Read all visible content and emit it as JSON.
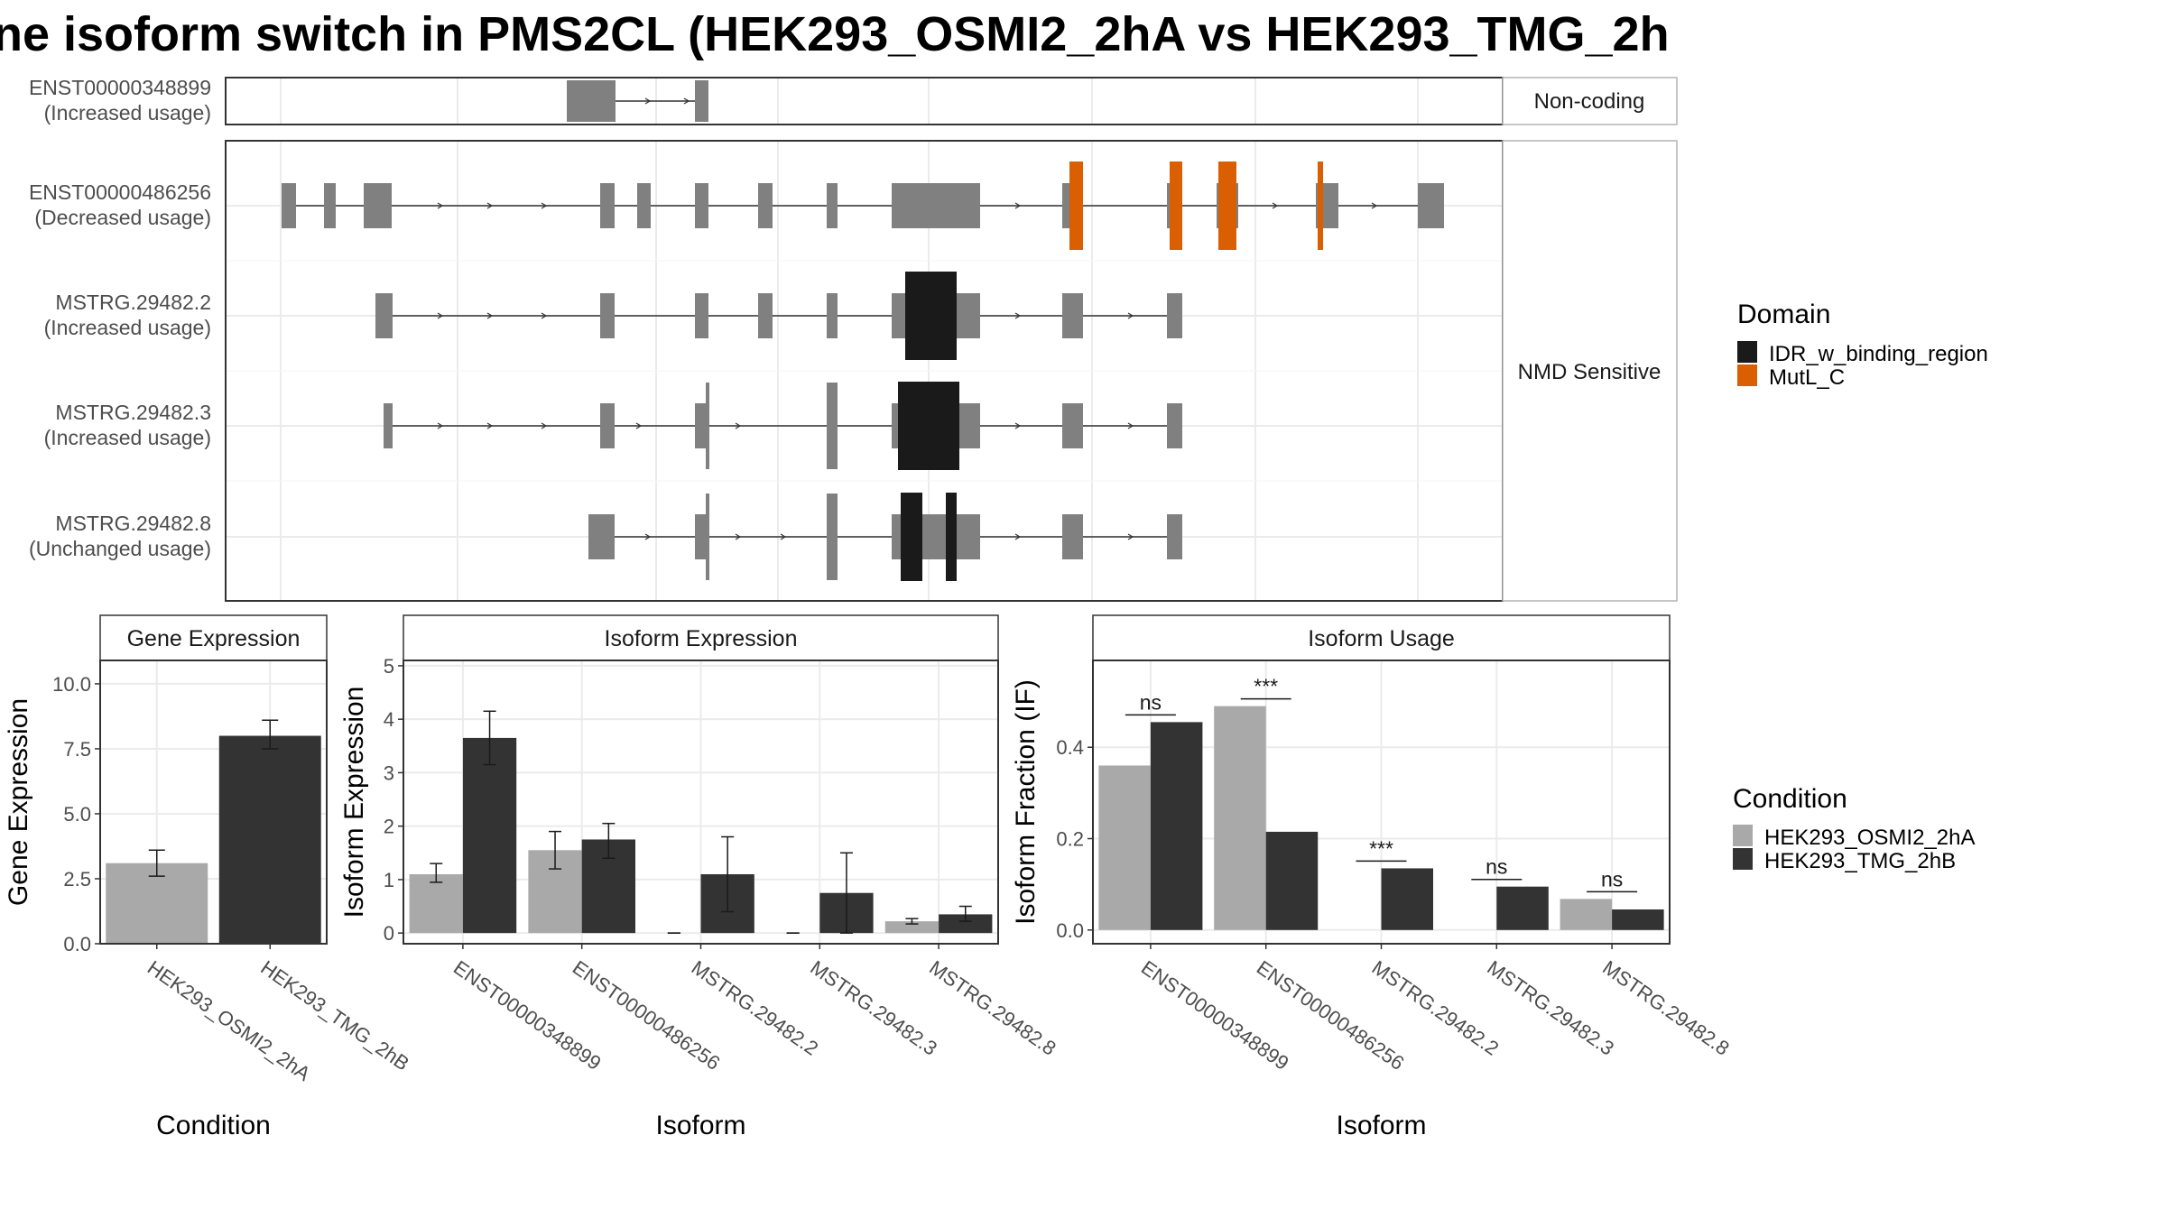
{
  "title": "ne isoform switch in PMS2CL (HEK293_OSMI2_2hA vs HEK293_TMG_2h",
  "colors": {
    "exon_gray": "#808080",
    "idr_black": "#1a1a1a",
    "mutl_orange": "#d95f02",
    "cond_a": "#a9a9a9",
    "cond_b": "#333333"
  },
  "chart_data": [
    {
      "type": "isoform-structure",
      "facets": [
        {
          "label": "Non-coding",
          "isoforms": [
            "ENST00000348899"
          ]
        },
        {
          "label": "NMD Sensitive",
          "isoforms": [
            "ENST00000486256",
            "MSTRG.29482.2",
            "MSTRG.29482.3",
            "MSTRG.29482.8"
          ]
        }
      ],
      "isoforms": [
        {
          "id": "ENST00000348899",
          "usage": "(Increased usage)"
        },
        {
          "id": "ENST00000486256",
          "usage": "(Decreased usage)"
        },
        {
          "id": "MSTRG.29482.2",
          "usage": "(Increased usage)"
        },
        {
          "id": "MSTRG.29482.3",
          "usage": "(Increased usage)"
        },
        {
          "id": "MSTRG.29482.8",
          "usage": "(Unchanged usage)"
        }
      ],
      "legend": {
        "title": "Domain",
        "entries": [
          {
            "label": "IDR_w_binding_region",
            "color": "#1a1a1a"
          },
          {
            "label": "MutL_C",
            "color": "#d95f02"
          }
        ]
      }
    },
    {
      "type": "bar",
      "title": "Gene Expression",
      "xlabel": "Condition",
      "ylabel": "Gene Expression",
      "categories": [
        "HEK293_OSMI2_2hA",
        "HEK293_TMG_2hB"
      ],
      "values": [
        3.1,
        8.0
      ],
      "errors": [
        [
          2.6,
          3.6
        ],
        [
          7.5,
          8.6
        ]
      ],
      "ylim": [
        0,
        10.9
      ],
      "yticks": [
        "0.0",
        "2.5",
        "5.0",
        "7.5",
        "10.0"
      ]
    },
    {
      "type": "bar",
      "title": "Isoform Expression",
      "xlabel": "Isoform",
      "ylabel": "Isoform Expression",
      "categories": [
        "ENST00000348899",
        "ENST00000486256",
        "MSTRG.29482.2",
        "MSTRG.29482.3",
        "MSTRG.29482.8"
      ],
      "series": [
        {
          "name": "HEK293_OSMI2_2hA",
          "values": [
            1.1,
            1.55,
            0.0,
            0.0,
            0.22
          ],
          "errors": [
            [
              0.95,
              1.3
            ],
            [
              1.2,
              1.9
            ],
            [
              0,
              0
            ],
            [
              0,
              0
            ],
            [
              0.17,
              0.27
            ]
          ]
        },
        {
          "name": "HEK293_TMG_2hB",
          "values": [
            3.65,
            1.75,
            1.1,
            0.75,
            0.35
          ],
          "errors": [
            [
              3.15,
              4.15
            ],
            [
              1.4,
              2.05
            ],
            [
              0.4,
              1.8
            ],
            [
              0.0,
              1.5
            ],
            [
              0.22,
              0.5
            ]
          ]
        }
      ],
      "ylim": [
        -0.2,
        5.1
      ],
      "yticks": [
        "0",
        "1",
        "2",
        "3",
        "4",
        "5"
      ]
    },
    {
      "type": "bar",
      "title": "Isoform Usage",
      "xlabel": "Isoform",
      "ylabel": "Isoform Fraction (IF)",
      "categories": [
        "ENST00000348899",
        "ENST00000486256",
        "MSTRG.29482.2",
        "MSTRG.29482.3",
        "MSTRG.29482.8"
      ],
      "series": [
        {
          "name": "HEK293_OSMI2_2hA",
          "values": [
            0.36,
            0.49,
            0.0,
            0.0,
            0.068
          ]
        },
        {
          "name": "HEK293_TMG_2hB",
          "values": [
            0.455,
            0.215,
            0.135,
            0.095,
            0.045
          ]
        }
      ],
      "significance": [
        "ns",
        "***",
        "***",
        "ns",
        "ns"
      ],
      "ylim": [
        -0.03,
        0.59
      ],
      "yticks": [
        "0.0",
        "0.2",
        "0.4"
      ]
    }
  ],
  "condition_legend": {
    "title": "Condition",
    "entries": [
      {
        "label": "HEK293_OSMI2_2hA",
        "color": "#a9a9a9"
      },
      {
        "label": "HEK293_TMG_2hB",
        "color": "#333333"
      }
    ]
  }
}
